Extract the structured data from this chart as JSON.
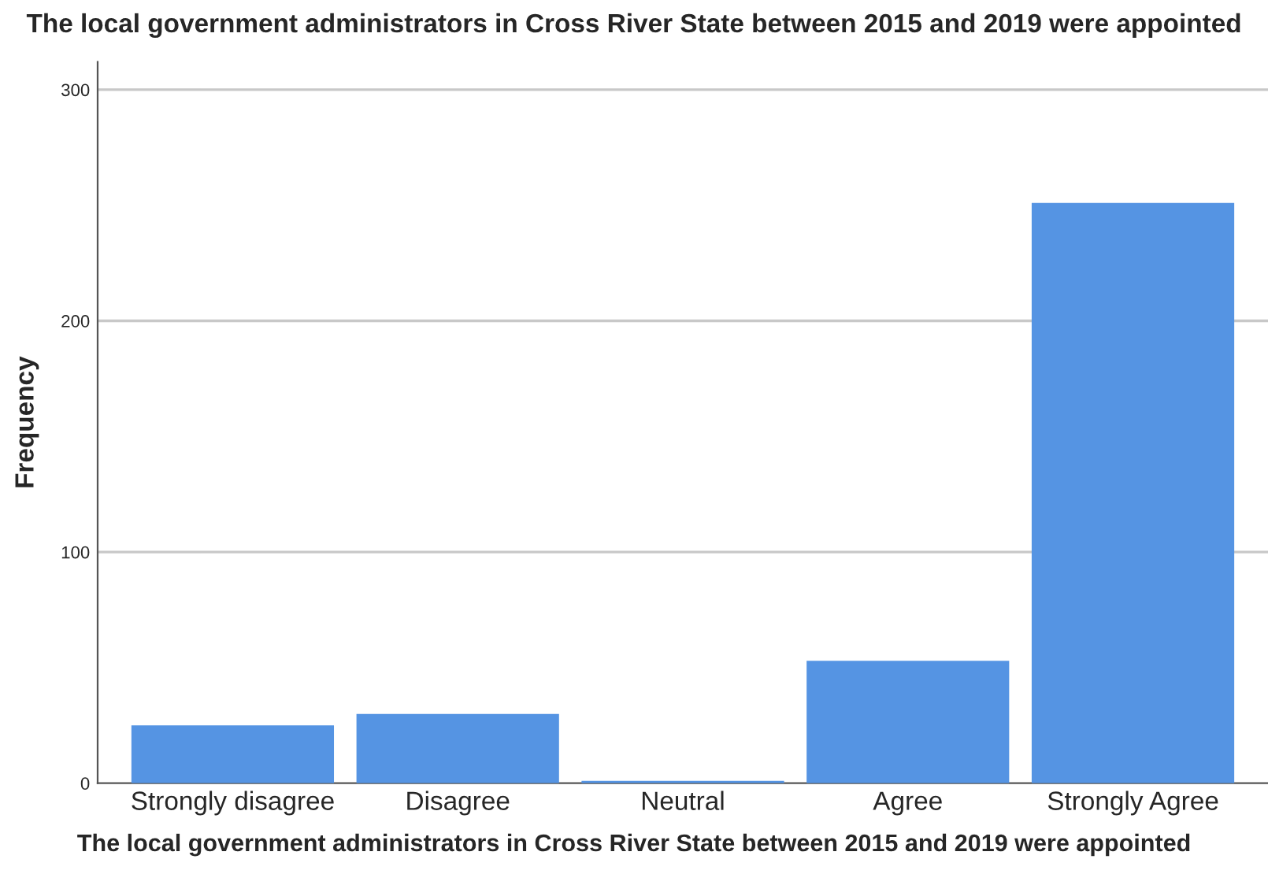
{
  "chart_data": {
    "type": "bar",
    "title": "The local government administrators in Cross River State between 2015 and 2019 were appointed",
    "xlabel": "The local government administrators in Cross River State between 2015 and 2019 were appointed",
    "ylabel": "Frequency",
    "categories": [
      "Strongly disagree",
      "Disagree",
      "Neutral",
      "Agree",
      "Strongly Agree"
    ],
    "values": [
      25,
      30,
      1,
      53,
      251
    ],
    "color": "#5594e3",
    "ylim": [
      0,
      312
    ],
    "yticks": [
      0,
      100,
      200,
      300
    ],
    "grid": "y",
    "legend": false
  }
}
